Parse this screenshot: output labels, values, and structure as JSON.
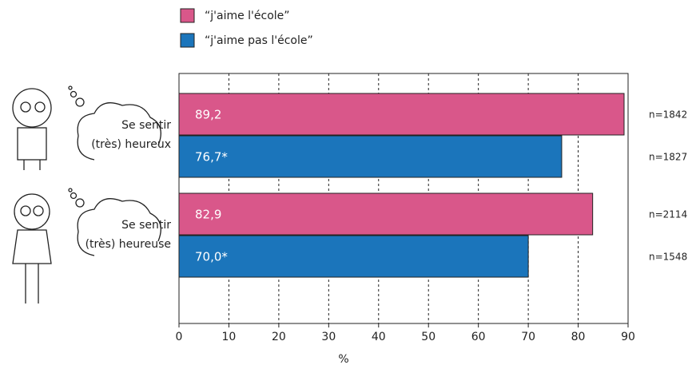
{
  "chart_data": {
    "type": "bar",
    "orientation": "horizontal",
    "categories": [
      [
        "Se sentir",
        "(très) heureux"
      ],
      [
        "Se sentir",
        "(très) heureuse"
      ]
    ],
    "series": [
      {
        "name": "“j'aime l'école”",
        "color": "#d9578a",
        "values": [
          89.2,
          82.9
        ],
        "value_labels": [
          "89,2",
          "82,9"
        ],
        "n_labels": [
          "n=1842",
          "n=2114"
        ]
      },
      {
        "name": "“j'aime pas l'école”",
        "color": "#1b75bb",
        "values": [
          76.7,
          70.0
        ],
        "value_labels": [
          "76,7*",
          "70,0*"
        ],
        "n_labels": [
          "n=1827",
          "n=1548"
        ]
      }
    ],
    "xlabel": "%",
    "xlim": [
      0,
      90
    ],
    "xticks": [
      0,
      10,
      20,
      30,
      40,
      50,
      60,
      70,
      80,
      90
    ],
    "grid": true
  }
}
